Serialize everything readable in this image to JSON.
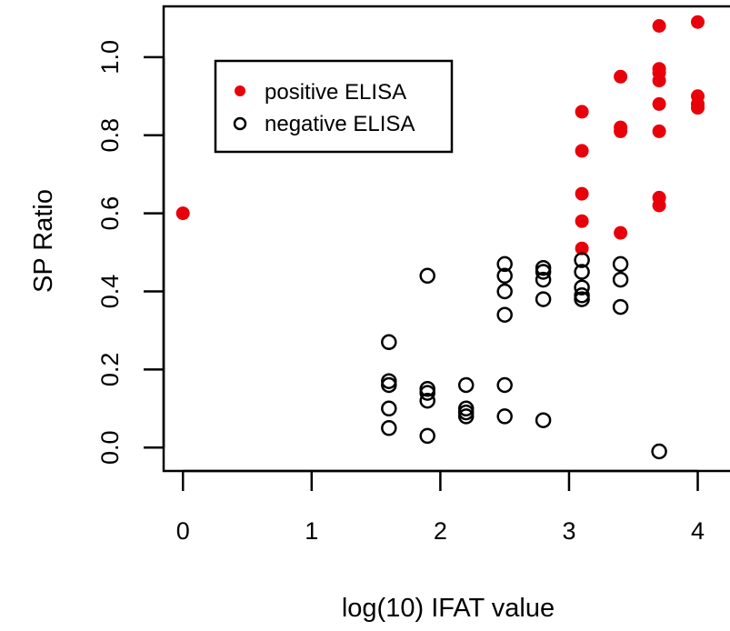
{
  "chart_data": {
    "type": "scatter",
    "title": "",
    "xlabel": "log(10) IFAT value",
    "ylabel": "SP Ratio",
    "xlim": [
      -0.15,
      4.3
    ],
    "ylim": [
      -0.06,
      1.13
    ],
    "x_ticks": [
      0,
      1,
      2,
      3,
      4
    ],
    "x_tick_labels": [
      "0",
      "1",
      "2",
      "3",
      "4"
    ],
    "y_ticks": [
      0.0,
      0.2,
      0.4,
      0.6,
      0.8,
      1.0
    ],
    "y_tick_labels": [
      "0.0",
      "0.2",
      "0.4",
      "0.6",
      "0.8",
      "1.0"
    ],
    "grid": false,
    "legend_position": "top-left",
    "series": [
      {
        "name": "positive ELISA",
        "marker": "filled-circle",
        "color": "#e8000b",
        "points": [
          [
            0,
            0.6
          ],
          [
            3.1,
            0.86
          ],
          [
            3.1,
            0.76
          ],
          [
            3.1,
            0.65
          ],
          [
            3.1,
            0.58
          ],
          [
            3.1,
            0.51
          ],
          [
            3.4,
            0.95
          ],
          [
            3.4,
            0.82
          ],
          [
            3.4,
            0.81
          ],
          [
            3.4,
            0.55
          ],
          [
            3.7,
            1.08
          ],
          [
            3.7,
            0.97
          ],
          [
            3.7,
            0.96
          ],
          [
            3.7,
            0.94
          ],
          [
            3.7,
            0.88
          ],
          [
            3.7,
            0.81
          ],
          [
            3.7,
            0.64
          ],
          [
            3.7,
            0.62
          ],
          [
            4.0,
            1.09
          ],
          [
            4.0,
            0.9
          ],
          [
            4.0,
            0.88
          ],
          [
            4.0,
            0.87
          ]
        ]
      },
      {
        "name": "negative ELISA",
        "marker": "open-circle",
        "color": "#000000",
        "points": [
          [
            1.6,
            0.27
          ],
          [
            1.6,
            0.17
          ],
          [
            1.6,
            0.16
          ],
          [
            1.6,
            0.1
          ],
          [
            1.6,
            0.05
          ],
          [
            1.9,
            0.44
          ],
          [
            1.9,
            0.15
          ],
          [
            1.9,
            0.14
          ],
          [
            1.9,
            0.12
          ],
          [
            1.9,
            0.03
          ],
          [
            2.2,
            0.16
          ],
          [
            2.2,
            0.1
          ],
          [
            2.2,
            0.09
          ],
          [
            2.2,
            0.08
          ],
          [
            2.5,
            0.47
          ],
          [
            2.5,
            0.44
          ],
          [
            2.5,
            0.4
          ],
          [
            2.5,
            0.34
          ],
          [
            2.5,
            0.16
          ],
          [
            2.5,
            0.08
          ],
          [
            2.8,
            0.46
          ],
          [
            2.8,
            0.45
          ],
          [
            2.8,
            0.43
          ],
          [
            2.8,
            0.38
          ],
          [
            2.8,
            0.07
          ],
          [
            3.1,
            0.48
          ],
          [
            3.1,
            0.45
          ],
          [
            3.1,
            0.41
          ],
          [
            3.1,
            0.39
          ],
          [
            3.1,
            0.38
          ],
          [
            3.4,
            0.47
          ],
          [
            3.4,
            0.43
          ],
          [
            3.4,
            0.36
          ],
          [
            3.7,
            -0.01
          ]
        ]
      }
    ]
  }
}
